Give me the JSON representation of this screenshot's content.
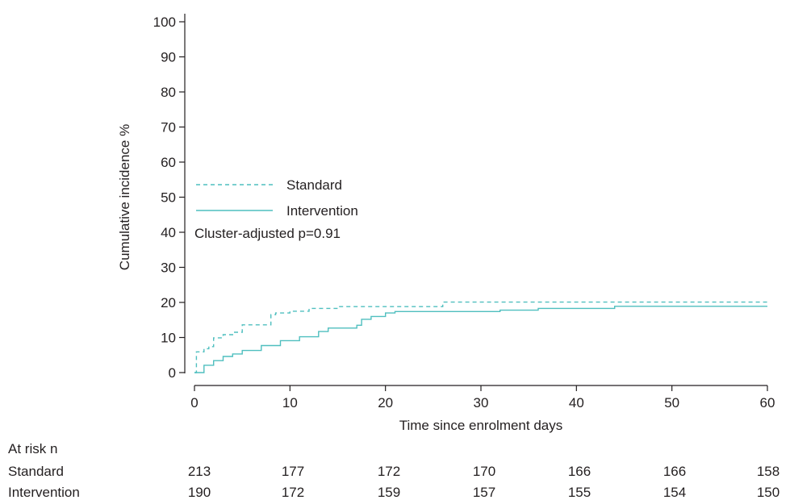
{
  "chart_data": {
    "type": "line",
    "xlabel": "Time since enrolment days",
    "ylabel": "Cumulative incidence %",
    "xlim": [
      0,
      60
    ],
    "ylim": [
      0,
      100
    ],
    "x_ticks": [
      0,
      10,
      20,
      30,
      40,
      50,
      60
    ],
    "y_ticks": [
      0,
      10,
      20,
      30,
      40,
      50,
      60,
      70,
      80,
      90,
      100
    ],
    "grid": false,
    "legend_position": "middle-left",
    "colors": {
      "series": "#4fbfbf",
      "axis": "#231f20"
    },
    "annotation": "Cluster-adjusted p=0.91",
    "series": [
      {
        "name": "Standard",
        "style": "dashed",
        "step_points": [
          [
            0,
            0
          ],
          [
            0.2,
            5.9
          ],
          [
            1,
            6.8
          ],
          [
            1.5,
            7.4
          ],
          [
            2,
            9.9
          ],
          [
            3,
            10.8
          ],
          [
            4,
            11.5
          ],
          [
            5,
            13.6
          ],
          [
            8,
            16.5
          ],
          [
            8.5,
            17.0
          ],
          [
            10,
            17.5
          ],
          [
            12,
            18.3
          ],
          [
            15,
            18.8
          ],
          [
            26,
            20.1
          ],
          [
            60,
            20.1
          ]
        ]
      },
      {
        "name": "Intervention",
        "style": "solid",
        "step_points": [
          [
            0,
            0
          ],
          [
            1,
            2.1
          ],
          [
            2,
            3.4
          ],
          [
            3,
            4.6
          ],
          [
            4,
            5.3
          ],
          [
            5,
            6.3
          ],
          [
            7,
            7.7
          ],
          [
            9,
            9.1
          ],
          [
            11,
            10.2
          ],
          [
            13,
            11.7
          ],
          [
            14,
            12.7
          ],
          [
            17,
            13.5
          ],
          [
            17.5,
            15.2
          ],
          [
            18.5,
            16.0
          ],
          [
            20,
            17.0
          ],
          [
            21,
            17.4
          ],
          [
            32,
            17.8
          ],
          [
            36,
            18.3
          ],
          [
            44,
            18.9
          ],
          [
            60,
            18.9
          ]
        ]
      }
    ],
    "risk_table": {
      "title": "At risk n",
      "times": [
        0,
        10,
        20,
        30,
        40,
        50,
        60
      ],
      "rows": [
        {
          "label": "Standard",
          "values": [
            "213",
            "177",
            "172",
            "170",
            "166",
            "166",
            "158"
          ]
        },
        {
          "label": "Intervention",
          "values": [
            "190",
            "172",
            "159",
            "157",
            "155",
            "154",
            "150"
          ]
        }
      ]
    }
  }
}
